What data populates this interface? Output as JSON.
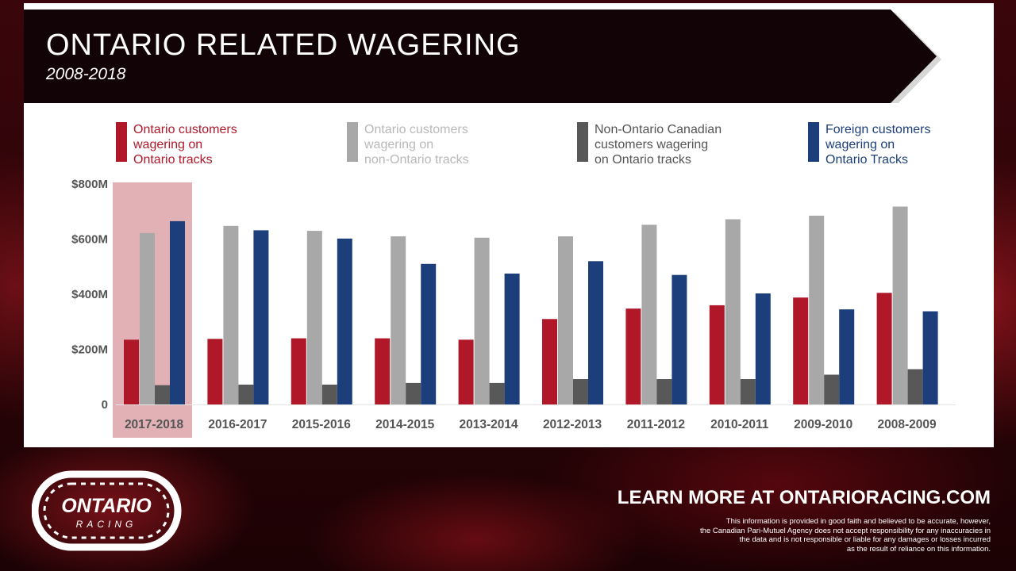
{
  "header": {
    "title": "ONTARIO RELATED WAGERING",
    "subtitle": "2008-2018"
  },
  "legend": [
    {
      "label": "Ontario customers\nwagering on\nOntario tracks",
      "color": "#b0182a",
      "text_color": "#b0182a"
    },
    {
      "label": "Ontario customers\nwagering on\nnon-Ontario tracks",
      "color": "#a8a8a8",
      "text_color": "#b8b8b8"
    },
    {
      "label": "Non-Ontario Canadian\ncustomers wagering\non Ontario tracks",
      "color": "#585858",
      "text_color": "#555555"
    },
    {
      "label": "Foreign customers\nwagering on\nOntario Tracks",
      "color": "#1c3f7c",
      "text_color": "#1c3f7c"
    }
  ],
  "chart_data": {
    "type": "bar",
    "categories": [
      "2017-2018",
      "2016-2017",
      "2015-2016",
      "2014-2015",
      "2013-2014",
      "2012-2013",
      "2011-2012",
      "2010-2011",
      "2009-2010",
      "2008-2009"
    ],
    "series": [
      {
        "name": "Ontario customers wagering on Ontario tracks",
        "color": "#b0182a",
        "values": [
          235,
          238,
          240,
          240,
          235,
          310,
          348,
          360,
          388,
          405
        ]
      },
      {
        "name": "Ontario customers wagering on non-Ontario tracks",
        "color": "#a8a8a8",
        "values": [
          622,
          648,
          630,
          610,
          605,
          610,
          652,
          672,
          685,
          718
        ]
      },
      {
        "name": "Non-Ontario Canadian customers wagering on Ontario tracks",
        "color": "#585858",
        "values": [
          70,
          72,
          72,
          78,
          78,
          92,
          92,
          92,
          108,
          128
        ]
      },
      {
        "name": "Foreign customers wagering on Ontario Tracks",
        "color": "#1c3f7c",
        "values": [
          665,
          632,
          602,
          510,
          475,
          520,
          470,
          403,
          345,
          338
        ]
      }
    ],
    "y_ticks": [
      {
        "value": 0,
        "label": "0"
      },
      {
        "value": 200,
        "label": "$200M"
      },
      {
        "value": 400,
        "label": "$400M"
      },
      {
        "value": 600,
        "label": "$600M"
      },
      {
        "value": 800,
        "label": "$800M"
      }
    ],
    "ylim": [
      0,
      800
    ],
    "highlight_category": "2017-2018",
    "highlight_color": "#e2b1b6",
    "grid": false,
    "legend_position": "top"
  },
  "footer": {
    "logo_text_top": "ONTARIO",
    "logo_text_bottom": "RACING",
    "learn_more": "LEARN MORE AT ONTARIORACING.COM",
    "disclaimer": "This information is provided in good faith and believed to be accurate, however,\nthe Canadian Pari-Mutuel Agency does not accept responsibility for any inaccuracies in\nthe data and is not responsible or liable for any damages or losses incurred\nas the result of reliance on this information."
  },
  "icons": {
    "logo": "ontario-racing-track-logo"
  }
}
